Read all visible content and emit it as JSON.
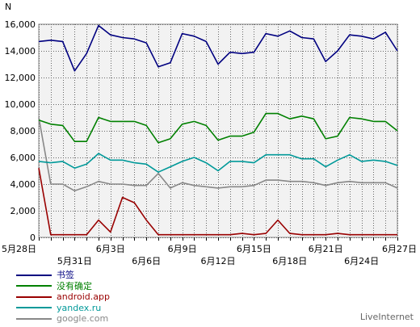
{
  "chart_data": {
    "type": "line",
    "ylabel": "N",
    "ylim": [
      0,
      16000
    ],
    "yticks": [
      0,
      2000,
      4000,
      6000,
      8000,
      10000,
      12000,
      14000,
      16000
    ],
    "ytick_labels": [
      "0",
      "2,000",
      "4,000",
      "6,000",
      "8,000",
      "10,000",
      "12,000",
      "14,000",
      "16,000"
    ],
    "x_count": 31,
    "x_labels": [
      {
        "i": 0,
        "label": "5月28日",
        "row": 1
      },
      {
        "i": 3,
        "label": "5月31日",
        "row": 2
      },
      {
        "i": 6,
        "label": "6月3日",
        "row": 1
      },
      {
        "i": 9,
        "label": "6月6日",
        "row": 2
      },
      {
        "i": 12,
        "label": "6月9日",
        "row": 1
      },
      {
        "i": 15,
        "label": "6月12日",
        "row": 2
      },
      {
        "i": 18,
        "label": "6月15日",
        "row": 1
      },
      {
        "i": 21,
        "label": "6月18日",
        "row": 2
      },
      {
        "i": 24,
        "label": "6月21日",
        "row": 1
      },
      {
        "i": 27,
        "label": "6月24日",
        "row": 2
      },
      {
        "i": 30,
        "label": "6月27日",
        "row": 1
      }
    ],
    "grid": true,
    "series": [
      {
        "name": "书签",
        "color": "#000080",
        "values": [
          14700,
          14800,
          14700,
          12500,
          13800,
          15900,
          15200,
          15000,
          14900,
          14600,
          12800,
          13100,
          15300,
          15100,
          14700,
          13000,
          13900,
          13800,
          13900,
          15300,
          15100,
          15500,
          15000,
          14900,
          13200,
          14000,
          15200,
          15100,
          14900,
          15400,
          14000
        ]
      },
      {
        "name": "没有确定",
        "color": "#008000",
        "values": [
          8800,
          8500,
          8400,
          7200,
          7200,
          9000,
          8700,
          8700,
          8700,
          8400,
          7100,
          7400,
          8500,
          8700,
          8400,
          7300,
          7600,
          7600,
          7900,
          9300,
          9300,
          8900,
          9100,
          8900,
          7400,
          7600,
          9000,
          8900,
          8700,
          8700,
          8000
        ]
      },
      {
        "name": "android.app",
        "color": "#990000",
        "values": [
          5200,
          200,
          200,
          200,
          200,
          1300,
          400,
          3000,
          2600,
          1300,
          200,
          200,
          200,
          200,
          200,
          200,
          200,
          300,
          200,
          300,
          1300,
          300,
          200,
          200,
          200,
          300,
          200,
          200,
          200,
          200,
          200
        ]
      },
      {
        "name": "yandex.ru",
        "color": "#009999",
        "values": [
          5700,
          5600,
          5700,
          5200,
          5500,
          6300,
          5800,
          5800,
          5600,
          5500,
          4900,
          5300,
          5700,
          6000,
          5600,
          5000,
          5700,
          5700,
          5600,
          6200,
          6200,
          6200,
          5900,
          5900,
          5300,
          5800,
          6200,
          5700,
          5800,
          5700,
          5400
        ]
      },
      {
        "name": "google.com",
        "color": "#888888",
        "values": [
          9000,
          4000,
          4000,
          3500,
          3800,
          4200,
          4000,
          4000,
          3900,
          3900,
          4800,
          3700,
          4100,
          3900,
          3800,
          3700,
          3800,
          3800,
          3900,
          4300,
          4300,
          4200,
          4200,
          4100,
          3900,
          4100,
          4200,
          4100,
          4100,
          4100,
          3700
        ]
      }
    ]
  },
  "brand": "LiveInternet"
}
